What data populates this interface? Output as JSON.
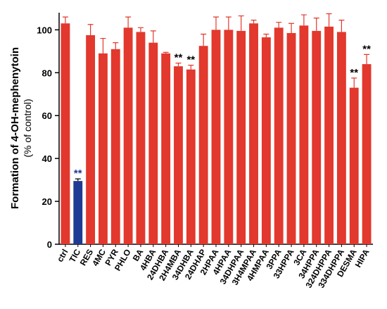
{
  "chart_data": {
    "type": "bar",
    "y_label": "Formation of 4-OH-mephenytoin",
    "y_sublabel": "(% of control)",
    "categories": [
      "ctrl",
      "TIC",
      "RES",
      "4MC",
      "PYR",
      "PHLO",
      "BA",
      "4HBA",
      "24DHBA",
      "2H4MBA",
      "34DHBA",
      "24DHAP",
      "2HPAA",
      "4HPAA",
      "34DHPAA",
      "3H4MPAA",
      "4HMPAA",
      "3PPA",
      "33HPPA",
      "3CA",
      "34HPPA",
      "324DHPPA",
      "334DHPPA",
      "DESMA",
      "HIPA"
    ],
    "values": [
      103,
      29.5,
      97.5,
      89,
      91,
      101,
      99,
      94,
      89,
      83,
      81.5,
      92.5,
      100,
      100,
      99.5,
      103,
      96.5,
      101,
      98.5,
      102,
      99.5,
      101.5,
      99,
      73,
      84
    ],
    "errors": [
      3,
      1,
      5,
      7,
      3,
      5,
      2,
      5.5,
      0.5,
      1.5,
      2,
      5.5,
      6,
      6,
      7,
      1.5,
      1.5,
      2.5,
      4.5,
      5,
      6,
      6,
      5.5,
      4.5,
      4.5
    ],
    "colors": [
      "#e2382d",
      "#1f3a93",
      "#e2382d",
      "#e2382d",
      "#e2382d",
      "#e2382d",
      "#e2382d",
      "#e2382d",
      "#e2382d",
      "#e2382d",
      "#e2382d",
      "#e2382d",
      "#e2382d",
      "#e2382d",
      "#e2382d",
      "#e2382d",
      "#e2382d",
      "#e2382d",
      "#e2382d",
      "#e2382d",
      "#e2382d",
      "#e2382d",
      "#e2382d",
      "#e2382d",
      "#e2382d"
    ],
    "significance": [
      null,
      "**",
      null,
      null,
      null,
      null,
      null,
      null,
      null,
      "**",
      "**",
      null,
      null,
      null,
      null,
      null,
      null,
      null,
      null,
      null,
      null,
      null,
      null,
      "**",
      "**"
    ],
    "ylim": [
      0,
      108
    ],
    "yticks": [
      0,
      20,
      40,
      60,
      80,
      100
    ]
  }
}
